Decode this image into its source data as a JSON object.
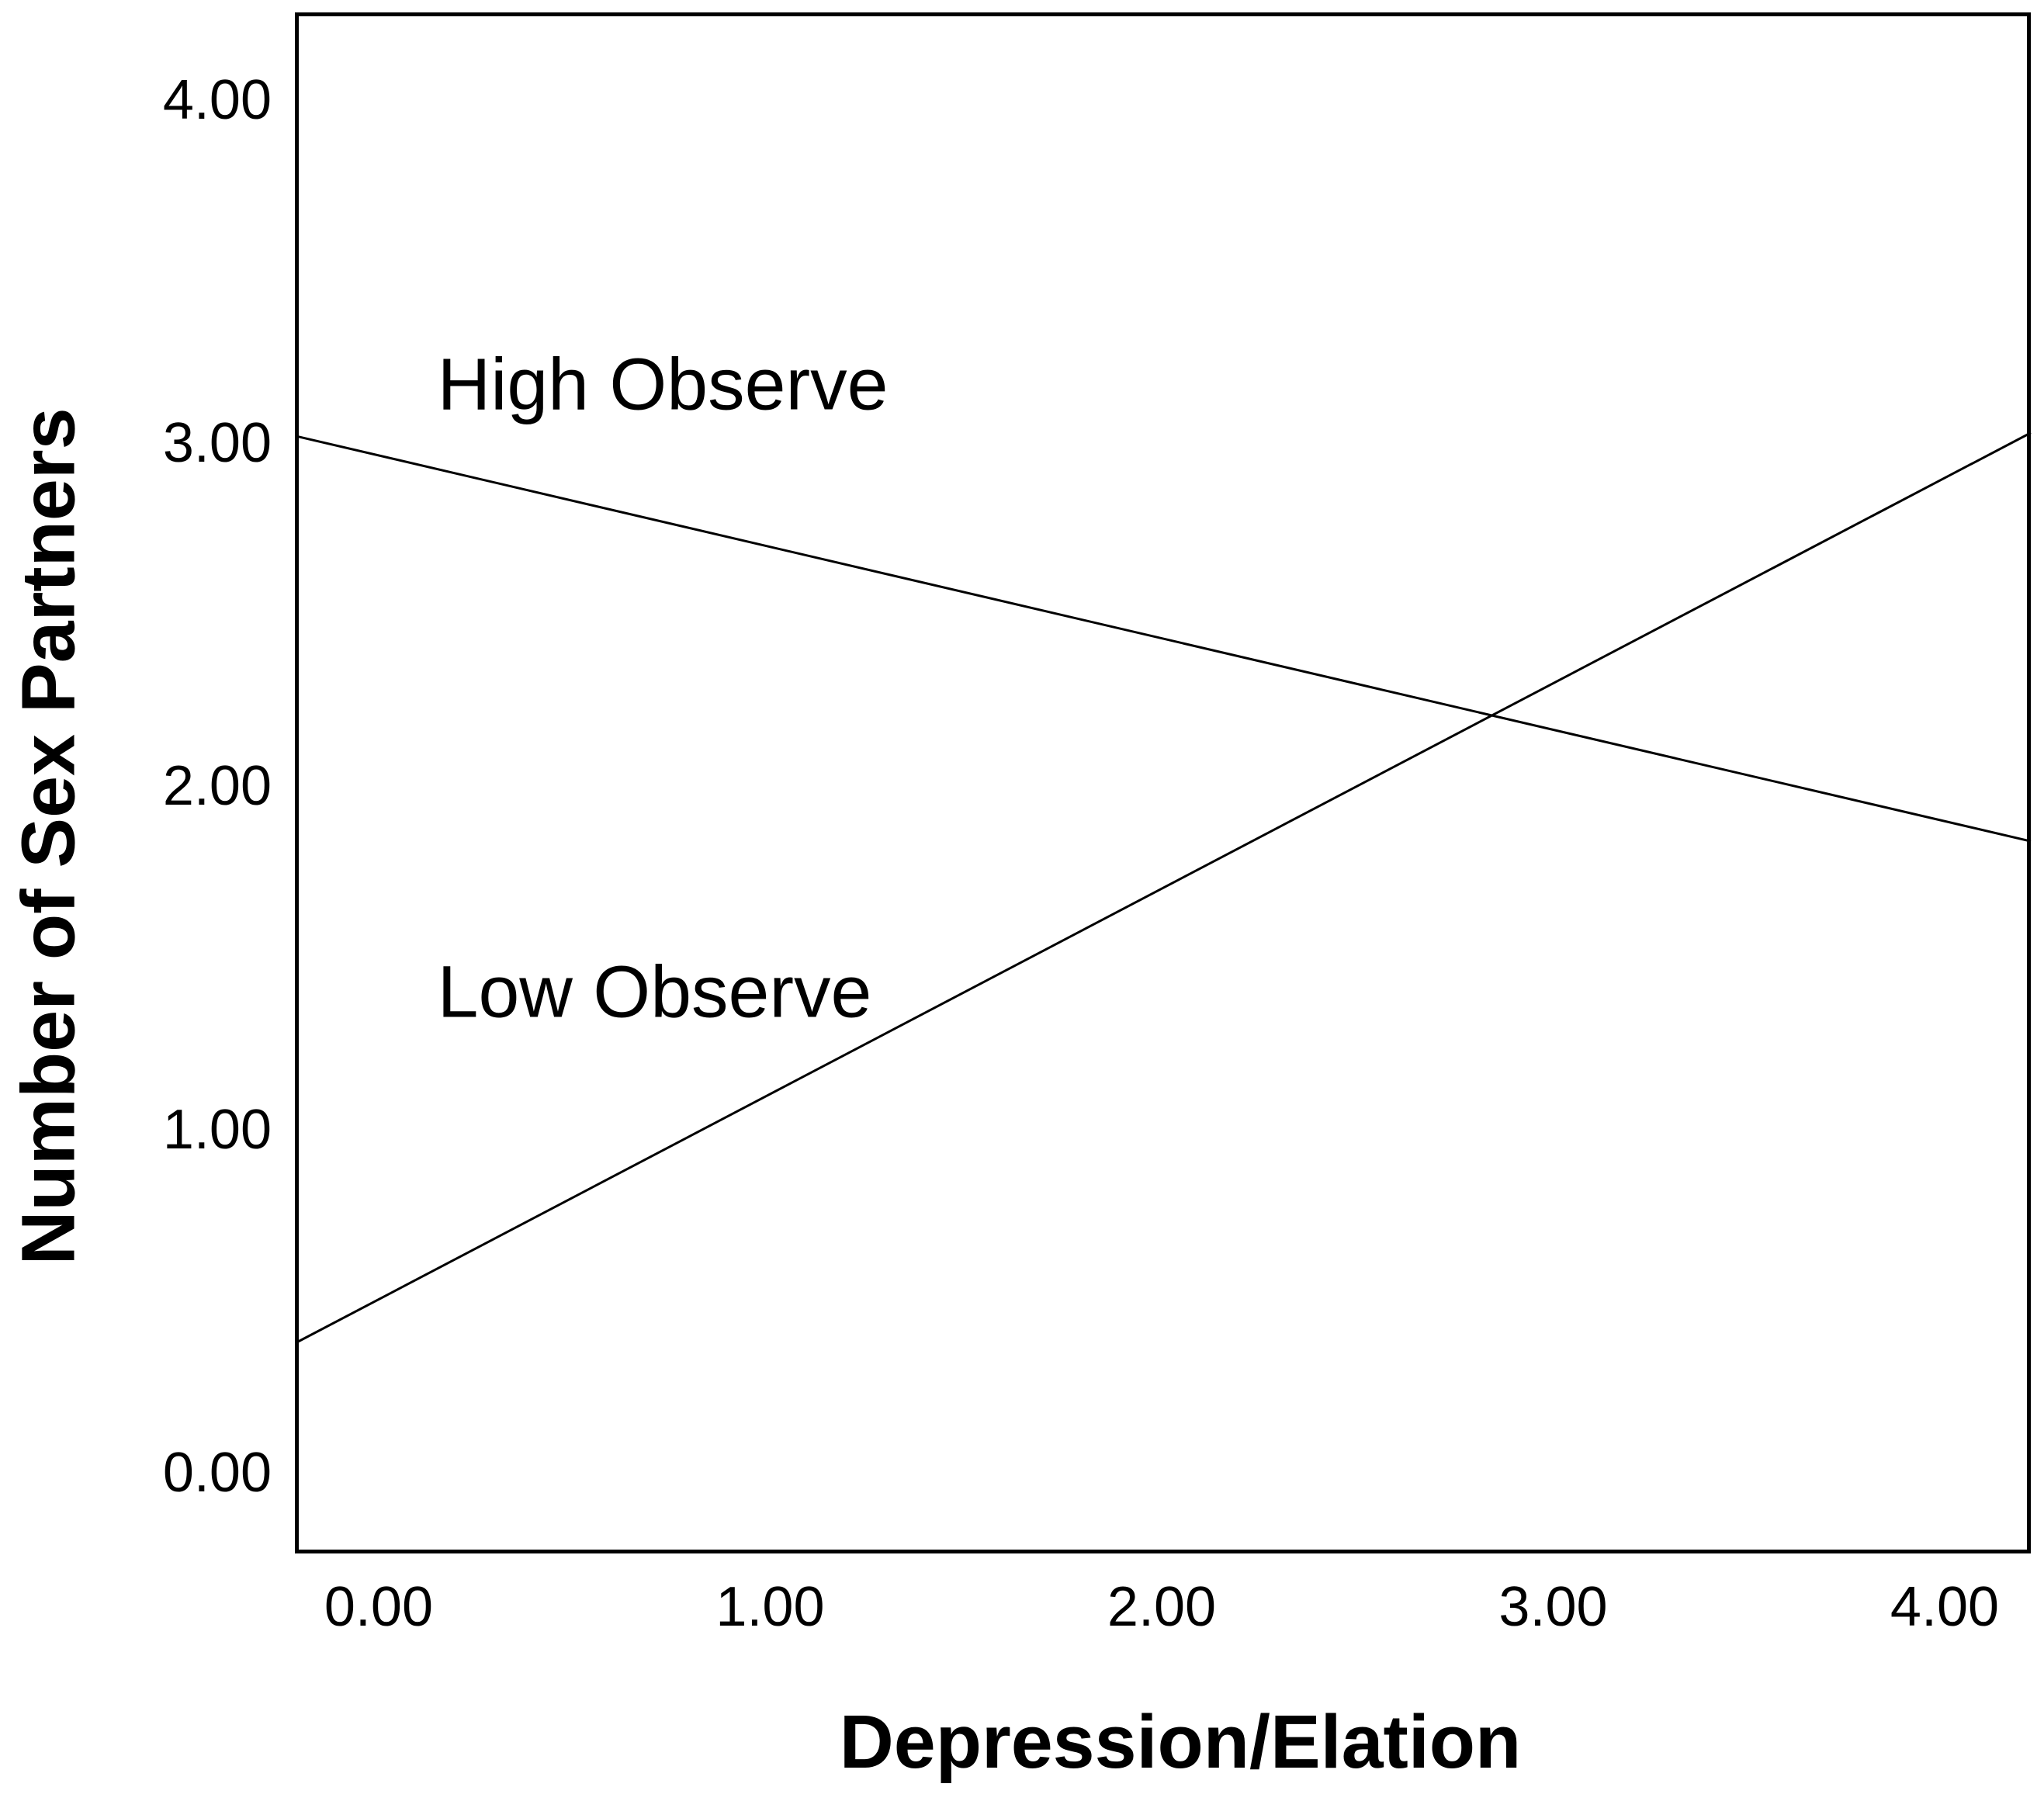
{
  "figure": {
    "background_color": "#ffffff",
    "frame_color": "#000000",
    "line_color": "#000000"
  },
  "chart_data": {
    "type": "line",
    "title": "",
    "xlabel": "Depression/Elation",
    "ylabel": "Number of Sex Partners",
    "xlim": [
      -0.21,
      4.22
    ],
    "ylim": [
      -0.23,
      4.25
    ],
    "grid": false,
    "legend_position": "inline-labels",
    "x_ticks": [
      {
        "value": 0,
        "label": "0.00"
      },
      {
        "value": 1,
        "label": "1.00"
      },
      {
        "value": 2,
        "label": "2.00"
      },
      {
        "value": 3,
        "label": "3.00"
      },
      {
        "value": 4,
        "label": "4.00"
      }
    ],
    "y_ticks": [
      {
        "value": 0,
        "label": "0.00"
      },
      {
        "value": 1,
        "label": "1.00"
      },
      {
        "value": 2,
        "label": "2.00"
      },
      {
        "value": 3,
        "label": "3.00"
      },
      {
        "value": 4,
        "label": "4.00"
      }
    ],
    "series": [
      {
        "name": "High Observe",
        "color": "#000000",
        "points": [
          {
            "x": -0.21,
            "y": 3.02
          },
          {
            "x": 4.22,
            "y": 1.84
          }
        ]
      },
      {
        "name": "Low Observe",
        "color": "#000000",
        "points": [
          {
            "x": -0.21,
            "y": 0.38
          },
          {
            "x": 4.22,
            "y": 3.03
          }
        ]
      }
    ],
    "annotations": [
      {
        "text": "High Observe",
        "x": 0.15,
        "y": 3.17
      },
      {
        "text": "Low Observe",
        "x": 0.15,
        "y": 1.4
      }
    ],
    "intersection": {
      "x": 2.85,
      "y": 2.2
    }
  }
}
